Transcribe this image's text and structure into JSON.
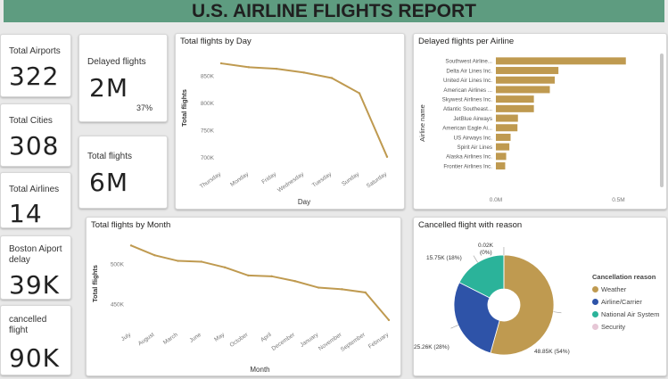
{
  "report_title": "U.S. AIRLINE FLIGHTS REPORT",
  "kpis": {
    "total_airports": {
      "label": "Total Airports",
      "value": "322"
    },
    "total_cities": {
      "label": "Total Cities",
      "value": "308"
    },
    "total_airlines": {
      "label": "Total Airlines",
      "value": "14"
    },
    "boston_delay": {
      "label": "Boston Aiport delay",
      "value": "39K"
    },
    "cancelled": {
      "label": "cancelled flight",
      "value": "90K"
    },
    "delayed_flights": {
      "label": "Delayed flights",
      "value": "2M",
      "percent": "37%"
    },
    "total_flights": {
      "label": "Total flights",
      "value": "6M"
    }
  },
  "colors": {
    "gold": "#bf9a50",
    "blue": "#2e53a8",
    "teal": "#2bb39a",
    "pink": "#e6c7d6",
    "header": "#5e9c80"
  },
  "chart_data": [
    {
      "type": "line",
      "title": "Total flights by Day",
      "xlabel": "Day",
      "ylabel": "Total flights",
      "x": [
        "Thursday",
        "Monday",
        "Friday",
        "Wednesday",
        "Tuesday",
        "Sunday",
        "Saturday"
      ],
      "values": [
        872000,
        865000,
        862000,
        855000,
        845000,
        817000,
        700000
      ],
      "ylim": [
        680000,
        900000
      ],
      "yticks": [
        700000,
        750000,
        800000,
        850000
      ],
      "ytick_labels": [
        "700K",
        "750K",
        "800K",
        "850K"
      ],
      "grid": false
    },
    {
      "type": "bar",
      "orientation": "horizontal",
      "title": "Delayed flights per Airline",
      "ylabel": "Airline name",
      "categories": [
        "Southwest Airline...",
        "Delta Air Lines Inc.",
        "United Air Lines Inc.",
        "American Airlines ...",
        "Skywest Airlines Inc.",
        "Atlantic Southeast...",
        "JetBlue Airways",
        "American Eagle Ai...",
        "US Airways Inc.",
        "Spirit Air Lines",
        "Alaska Airlines Inc.",
        "Frontier Airlines Inc."
      ],
      "values": [
        530000,
        255000,
        240000,
        220000,
        155000,
        155000,
        90000,
        88000,
        60000,
        55000,
        42000,
        38000
      ],
      "xlim": [
        0,
        600000
      ],
      "xticks": [
        0,
        500000
      ],
      "xtick_labels": [
        "0.0M",
        "0.5M"
      ]
    },
    {
      "type": "line",
      "title": "Total flights by Month",
      "xlabel": "Month",
      "ylabel": "Total flights",
      "x": [
        "July",
        "August",
        "March",
        "June",
        "May",
        "October",
        "April",
        "December",
        "January",
        "November",
        "September",
        "February"
      ],
      "values": [
        522000,
        510000,
        503000,
        502000,
        495000,
        485000,
        484000,
        478000,
        470000,
        468000,
        464000,
        430000
      ],
      "ylim": [
        420000,
        530000
      ],
      "yticks": [
        450000,
        500000
      ],
      "ytick_labels": [
        "450K",
        "500K"
      ],
      "grid": false
    },
    {
      "type": "pie",
      "donut": true,
      "title": "Cancelled flight with reason",
      "legend_title": "Cancellation reason",
      "legend_position": "right",
      "slices": [
        {
          "label": "Weather",
          "value": 48850,
          "display": "48.85K (54%)",
          "color": "#bf9a50"
        },
        {
          "label": "Airline/Carrier",
          "value": 25260,
          "display": "25.26K (28%)",
          "color": "#2e53a8"
        },
        {
          "label": "National Air System",
          "value": 15750,
          "display": "15.75K (18%)",
          "color": "#2bb39a"
        },
        {
          "label": "Security",
          "value": 20,
          "display": "0.02K (0%)",
          "color": "#e6c7d6"
        }
      ]
    }
  ]
}
